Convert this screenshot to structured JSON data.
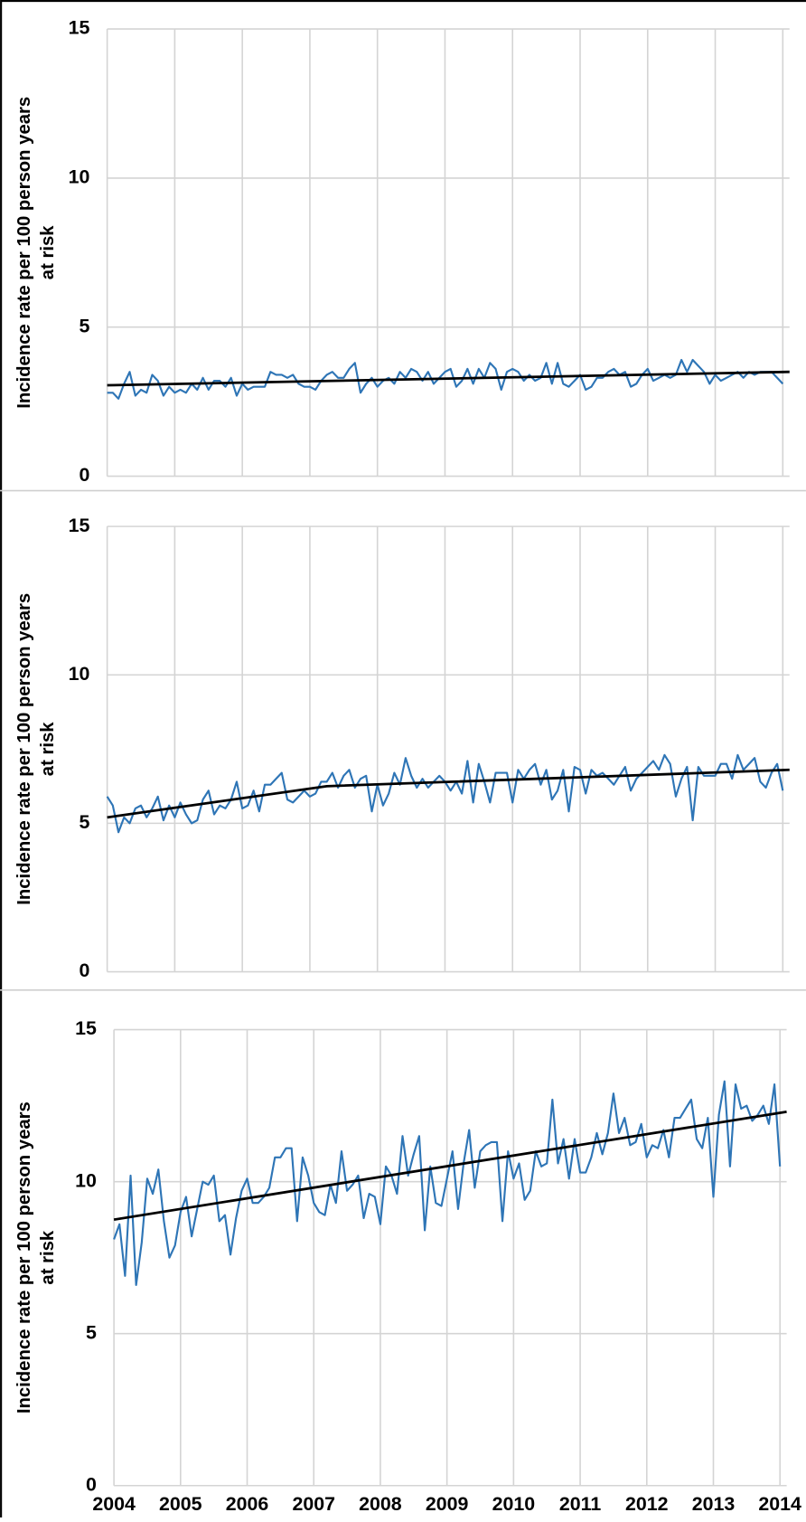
{
  "chart_data": [
    {
      "type": "line",
      "ylabel": [
        "Incidence rate per 100 person years",
        "at risk"
      ],
      "xlim": [
        2004,
        2014.1
      ],
      "xticks": [
        2004,
        2005,
        2006,
        2007,
        2008,
        2009,
        2010,
        2011,
        2012,
        2013,
        2014
      ],
      "show_xtick_labels": false,
      "ylim": [
        0,
        15
      ],
      "yticks": [
        0,
        5,
        10,
        15
      ],
      "grid": true,
      "x": [
        2004,
        2004.083,
        2004.167,
        2004.25,
        2004.333,
        2004.417,
        2004.5,
        2004.583,
        2004.667,
        2004.75,
        2004.833,
        2004.917,
        2005,
        2005.083,
        2005.167,
        2005.25,
        2005.333,
        2005.417,
        2005.5,
        2005.583,
        2005.667,
        2005.75,
        2005.833,
        2005.917,
        2006,
        2006.083,
        2006.167,
        2006.25,
        2006.333,
        2006.417,
        2006.5,
        2006.583,
        2006.667,
        2006.75,
        2006.833,
        2006.917,
        2007,
        2007.083,
        2007.167,
        2007.25,
        2007.333,
        2007.417,
        2007.5,
        2007.583,
        2007.667,
        2007.75,
        2007.833,
        2007.917,
        2008,
        2008.083,
        2008.167,
        2008.25,
        2008.333,
        2008.417,
        2008.5,
        2008.583,
        2008.667,
        2008.75,
        2008.833,
        2008.917,
        2009,
        2009.083,
        2009.167,
        2009.25,
        2009.333,
        2009.417,
        2009.5,
        2009.583,
        2009.667,
        2009.75,
        2009.833,
        2009.917,
        2010,
        2010.083,
        2010.167,
        2010.25,
        2010.333,
        2010.417,
        2010.5,
        2010.583,
        2010.667,
        2010.75,
        2010.833,
        2010.917,
        2011,
        2011.083,
        2011.167,
        2011.25,
        2011.333,
        2011.417,
        2011.5,
        2011.583,
        2011.667,
        2011.75,
        2011.833,
        2011.917,
        2012,
        2012.083,
        2012.167,
        2012.25,
        2012.333,
        2012.417,
        2012.5,
        2012.583,
        2012.667,
        2012.75,
        2012.833,
        2012.917,
        2013,
        2013.083,
        2013.167,
        2013.25,
        2013.333,
        2013.417,
        2013.5,
        2013.583,
        2013.667,
        2013.75,
        2013.833,
        2013.917,
        2014
      ],
      "series": [
        {
          "color": "#2e75b6",
          "values": [
            2.8,
            2.8,
            2.6,
            3.1,
            3.5,
            2.7,
            2.9,
            2.8,
            3.4,
            3.2,
            2.7,
            3.0,
            2.8,
            2.9,
            2.8,
            3.1,
            2.9,
            3.3,
            2.9,
            3.2,
            3.2,
            3.0,
            3.3,
            2.7,
            3.1,
            2.9,
            3.0,
            3.0,
            3.0,
            3.5,
            3.4,
            3.4,
            3.3,
            3.4,
            3.1,
            3.0,
            3.0,
            2.9,
            3.2,
            3.4,
            3.5,
            3.3,
            3.3,
            3.6,
            3.8,
            2.8,
            3.1,
            3.3,
            3.0,
            3.2,
            3.3,
            3.1,
            3.5,
            3.3,
            3.6,
            3.5,
            3.2,
            3.5,
            3.1,
            3.3,
            3.5,
            3.6,
            3.0,
            3.2,
            3.6,
            3.1,
            3.6,
            3.3,
            3.8,
            3.6,
            2.9,
            3.5,
            3.6,
            3.5,
            3.2,
            3.4,
            3.2,
            3.3,
            3.8,
            3.1,
            3.8,
            3.1,
            3.0,
            3.2,
            3.4,
            2.9,
            3.0,
            3.3,
            3.3,
            3.5,
            3.6,
            3.4,
            3.5,
            3.0,
            3.1,
            3.4,
            3.6,
            3.2,
            3.3,
            3.4,
            3.3,
            3.4,
            3.9,
            3.5,
            3.9,
            3.7,
            3.5,
            3.1,
            3.4,
            3.2,
            3.3,
            3.4,
            3.5,
            3.3,
            3.5,
            3.4,
            3.5,
            3.5,
            3.5,
            3.3,
            3.1
          ]
        },
        {
          "color": "#000000",
          "x": [
            2004,
            2014.1
          ],
          "values": [
            3.05,
            3.5
          ]
        }
      ]
    },
    {
      "type": "line",
      "ylabel": [
        "Incidence rate per 100 person years",
        "at risk"
      ],
      "xlim": [
        2004,
        2014.1
      ],
      "xticks": [
        2004,
        2005,
        2006,
        2007,
        2008,
        2009,
        2010,
        2011,
        2012,
        2013,
        2014
      ],
      "show_xtick_labels": false,
      "ylim": [
        0,
        15
      ],
      "yticks": [
        0,
        5,
        10,
        15
      ],
      "grid": true,
      "x": [
        2004,
        2004.083,
        2004.167,
        2004.25,
        2004.333,
        2004.417,
        2004.5,
        2004.583,
        2004.667,
        2004.75,
        2004.833,
        2004.917,
        2005,
        2005.083,
        2005.167,
        2005.25,
        2005.333,
        2005.417,
        2005.5,
        2005.583,
        2005.667,
        2005.75,
        2005.833,
        2005.917,
        2006,
        2006.083,
        2006.167,
        2006.25,
        2006.333,
        2006.417,
        2006.5,
        2006.583,
        2006.667,
        2006.75,
        2006.833,
        2006.917,
        2007,
        2007.083,
        2007.167,
        2007.25,
        2007.333,
        2007.417,
        2007.5,
        2007.583,
        2007.667,
        2007.75,
        2007.833,
        2007.917,
        2008,
        2008.083,
        2008.167,
        2008.25,
        2008.333,
        2008.417,
        2008.5,
        2008.583,
        2008.667,
        2008.75,
        2008.833,
        2008.917,
        2009,
        2009.083,
        2009.167,
        2009.25,
        2009.333,
        2009.417,
        2009.5,
        2009.583,
        2009.667,
        2009.75,
        2009.833,
        2009.917,
        2010,
        2010.083,
        2010.167,
        2010.25,
        2010.333,
        2010.417,
        2010.5,
        2010.583,
        2010.667,
        2010.75,
        2010.833,
        2010.917,
        2011,
        2011.083,
        2011.167,
        2011.25,
        2011.333,
        2011.417,
        2011.5,
        2011.583,
        2011.667,
        2011.75,
        2011.833,
        2011.917,
        2012,
        2012.083,
        2012.167,
        2012.25,
        2012.333,
        2012.417,
        2012.5,
        2012.583,
        2012.667,
        2012.75,
        2012.833,
        2012.917,
        2013,
        2013.083,
        2013.167,
        2013.25,
        2013.333,
        2013.417,
        2013.5,
        2013.583,
        2013.667,
        2013.75,
        2013.833,
        2013.917,
        2014
      ],
      "series": [
        {
          "color": "#2e75b6",
          "values": [
            5.9,
            5.6,
            4.7,
            5.2,
            5.0,
            5.5,
            5.6,
            5.2,
            5.5,
            5.9,
            5.1,
            5.6,
            5.2,
            5.7,
            5.3,
            5.0,
            5.1,
            5.8,
            6.1,
            5.3,
            5.6,
            5.5,
            5.8,
            6.4,
            5.5,
            5.6,
            6.1,
            5.4,
            6.3,
            6.3,
            6.5,
            6.7,
            5.8,
            5.7,
            5.9,
            6.1,
            5.9,
            6.0,
            6.4,
            6.4,
            6.7,
            6.2,
            6.6,
            6.8,
            6.2,
            6.5,
            6.6,
            5.4,
            6.3,
            5.6,
            6.0,
            6.7,
            6.3,
            7.2,
            6.6,
            6.2,
            6.5,
            6.2,
            6.4,
            6.6,
            6.4,
            6.1,
            6.4,
            6.0,
            7.1,
            5.7,
            7.0,
            6.4,
            5.7,
            6.7,
            6.7,
            6.7,
            5.7,
            6.8,
            6.5,
            6.8,
            7.0,
            6.3,
            6.8,
            5.8,
            6.1,
            6.8,
            5.4,
            6.9,
            6.8,
            6.0,
            6.8,
            6.6,
            6.7,
            6.5,
            6.3,
            6.6,
            6.9,
            6.1,
            6.5,
            6.7,
            6.9,
            7.1,
            6.8,
            7.3,
            7.0,
            5.9,
            6.5,
            6.9,
            5.1,
            6.9,
            6.6,
            6.6,
            6.6,
            7.0,
            7.0,
            6.5,
            7.3,
            6.8,
            7.0,
            7.2,
            6.4,
            6.2,
            6.7,
            7.0,
            6.1
          ]
        },
        {
          "color": "#000000",
          "x": [
            2004,
            2007.25,
            2014.1
          ],
          "values": [
            5.2,
            6.25,
            6.8
          ]
        }
      ]
    },
    {
      "type": "line",
      "ylabel": [
        "Incidence rate per 100 person years",
        "at risk"
      ],
      "xlim": [
        2004,
        2014.1
      ],
      "xticks": [
        2004,
        2005,
        2006,
        2007,
        2008,
        2009,
        2010,
        2011,
        2012,
        2013,
        2014
      ],
      "show_xtick_labels": true,
      "ylim": [
        0,
        15
      ],
      "yticks": [
        0,
        5,
        10,
        15
      ],
      "grid": true,
      "x": [
        2004,
        2004.083,
        2004.167,
        2004.25,
        2004.333,
        2004.417,
        2004.5,
        2004.583,
        2004.667,
        2004.75,
        2004.833,
        2004.917,
        2005,
        2005.083,
        2005.167,
        2005.25,
        2005.333,
        2005.417,
        2005.5,
        2005.583,
        2005.667,
        2005.75,
        2005.833,
        2005.917,
        2006,
        2006.083,
        2006.167,
        2006.25,
        2006.333,
        2006.417,
        2006.5,
        2006.583,
        2006.667,
        2006.75,
        2006.833,
        2006.917,
        2007,
        2007.083,
        2007.167,
        2007.25,
        2007.333,
        2007.417,
        2007.5,
        2007.583,
        2007.667,
        2007.75,
        2007.833,
        2007.917,
        2008,
        2008.083,
        2008.167,
        2008.25,
        2008.333,
        2008.417,
        2008.5,
        2008.583,
        2008.667,
        2008.75,
        2008.833,
        2008.917,
        2009,
        2009.083,
        2009.167,
        2009.25,
        2009.333,
        2009.417,
        2009.5,
        2009.583,
        2009.667,
        2009.75,
        2009.833,
        2009.917,
        2010,
        2010.083,
        2010.167,
        2010.25,
        2010.333,
        2010.417,
        2010.5,
        2010.583,
        2010.667,
        2010.75,
        2010.833,
        2010.917,
        2011,
        2011.083,
        2011.167,
        2011.25,
        2011.333,
        2011.417,
        2011.5,
        2011.583,
        2011.667,
        2011.75,
        2011.833,
        2011.917,
        2012,
        2012.083,
        2012.167,
        2012.25,
        2012.333,
        2012.417,
        2012.5,
        2012.583,
        2012.667,
        2012.75,
        2012.833,
        2012.917,
        2013,
        2013.083,
        2013.167,
        2013.25,
        2013.333,
        2013.417,
        2013.5,
        2013.583,
        2013.667,
        2013.75,
        2013.833,
        2013.917,
        2014
      ],
      "series": [
        {
          "color": "#2e75b6",
          "values": [
            8.1,
            8.6,
            6.9,
            10.2,
            6.6,
            8.0,
            10.1,
            9.6,
            10.4,
            8.7,
            7.5,
            7.9,
            9.0,
            9.5,
            8.2,
            9.1,
            10.0,
            9.9,
            10.2,
            8.7,
            8.9,
            7.6,
            8.8,
            9.7,
            10.1,
            9.3,
            9.3,
            9.5,
            9.8,
            10.8,
            10.8,
            11.1,
            11.1,
            8.7,
            10.8,
            10.2,
            9.3,
            9.0,
            8.9,
            9.9,
            9.3,
            11.0,
            9.7,
            9.9,
            10.2,
            8.8,
            9.6,
            9.5,
            8.6,
            10.5,
            10.2,
            9.6,
            11.5,
            10.2,
            10.9,
            11.5,
            8.4,
            10.5,
            9.3,
            9.2,
            10.1,
            11.0,
            9.1,
            10.6,
            11.7,
            9.8,
            11.0,
            11.2,
            11.3,
            11.3,
            8.7,
            11.0,
            10.1,
            10.6,
            9.4,
            9.7,
            11.0,
            10.5,
            10.6,
            12.7,
            10.6,
            11.4,
            10.1,
            11.4,
            10.3,
            10.3,
            10.8,
            11.6,
            10.9,
            11.6,
            12.9,
            11.6,
            12.1,
            11.2,
            11.3,
            11.9,
            10.8,
            11.2,
            11.1,
            11.7,
            10.8,
            12.1,
            12.1,
            12.4,
            12.7,
            11.4,
            11.1,
            12.1,
            9.5,
            12.2,
            13.3,
            10.5,
            13.2,
            12.4,
            12.5,
            12.0,
            12.2,
            12.5,
            11.9,
            13.2,
            10.5
          ]
        },
        {
          "color": "#000000",
          "x": [
            2004,
            2014.1
          ],
          "values": [
            8.75,
            12.3
          ]
        }
      ]
    }
  ]
}
